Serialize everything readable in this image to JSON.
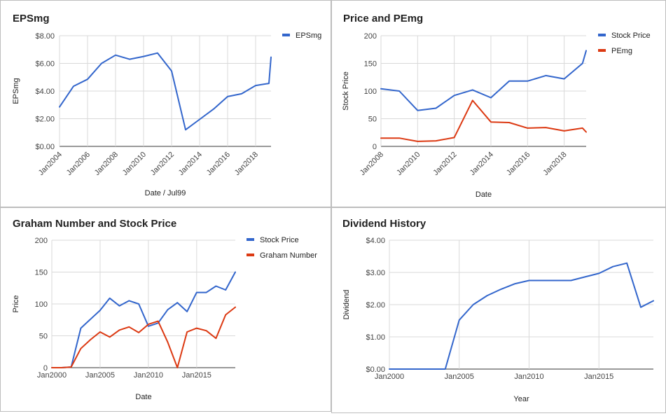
{
  "colors": {
    "blue": "#3366cc",
    "red": "#dc3912"
  },
  "chart_data": [
    {
      "type": "line",
      "title": "EPSmg",
      "xlabel": "Date / Jul99",
      "ylabel": "EPSmg",
      "ylim": [
        0,
        8
      ],
      "y_ticks": [
        "$0.00",
        "$2.00",
        "$4.00",
        "$6.00",
        "$8.00"
      ],
      "x_ticks": [
        "Jan2004",
        "Jan2006",
        "Jan2008",
        "Jan2010",
        "Jan2012",
        "Jan2014",
        "Jan2016",
        "Jan2018"
      ],
      "x_tick_values": [
        2004,
        2006,
        2008,
        2010,
        2012,
        2014,
        2016,
        2018
      ],
      "xlim": [
        2004,
        2019.1
      ],
      "legend": "right",
      "series": [
        {
          "name": "EPSmg",
          "color": "#3366cc",
          "x": [
            2004,
            2005,
            2006,
            2007,
            2008,
            2009,
            2010,
            2011,
            2012,
            2013,
            2014,
            2015,
            2016,
            2017,
            2018,
            2018.95,
            2019.1
          ],
          "y": [
            2.85,
            4.35,
            4.85,
            6.0,
            6.6,
            6.3,
            6.5,
            6.75,
            5.45,
            1.2,
            1.95,
            2.7,
            3.6,
            3.8,
            4.4,
            4.55,
            6.45
          ]
        }
      ]
    },
    {
      "type": "line",
      "title": "Price and PEmg",
      "xlabel": "Date",
      "ylabel": "Stock Price",
      "ylim": [
        0,
        200
      ],
      "y_ticks": [
        "0",
        "50",
        "100",
        "150",
        "200"
      ],
      "x_ticks": [
        "Jan2008",
        "Jan2010",
        "Jan2012",
        "Jan2014",
        "Jan2016",
        "Jan2018"
      ],
      "x_tick_values": [
        2008,
        2010,
        2012,
        2014,
        2016,
        2018
      ],
      "xlim": [
        2008,
        2019.2
      ],
      "legend": "right",
      "series": [
        {
          "name": "Stock Price",
          "color": "#3366cc",
          "x": [
            2008,
            2009,
            2010,
            2011,
            2012,
            2013,
            2014,
            2015,
            2016,
            2017,
            2018,
            2019,
            2019.2
          ],
          "y": [
            104,
            100,
            65,
            69,
            92,
            102,
            88,
            118,
            118,
            128,
            122,
            150,
            173
          ]
        },
        {
          "name": "PEmg",
          "color": "#dc3912",
          "x": [
            2008,
            2009,
            2010,
            2011,
            2012,
            2013,
            2014,
            2015,
            2016,
            2017,
            2018,
            2019,
            2019.2
          ],
          "y": [
            15,
            15,
            9,
            10,
            16,
            83,
            44,
            43,
            33,
            34,
            28,
            33,
            26
          ]
        }
      ]
    },
    {
      "type": "line",
      "title": "Graham Number and Stock Price",
      "xlabel": "Date",
      "ylabel": "Price",
      "ylim": [
        0,
        200
      ],
      "y_ticks": [
        "0",
        "50",
        "100",
        "150",
        "200"
      ],
      "x_ticks": [
        "Jan2000",
        "Jan2005",
        "Jan2010",
        "Jan2015"
      ],
      "x_tick_values": [
        2000,
        2005,
        2010,
        2015
      ],
      "xlim": [
        2000,
        2019.0
      ],
      "legend": "right",
      "series": [
        {
          "name": "Stock Price",
          "color": "#3366cc",
          "x": [
            2000,
            2001,
            2002,
            2003,
            2004,
            2005,
            2006,
            2007,
            2008,
            2009,
            2010,
            2011,
            2012,
            2013,
            2014,
            2015,
            2016,
            2017,
            2018,
            2019
          ],
          "y": [
            0,
            0,
            1,
            62,
            76,
            90,
            109,
            97,
            105,
            100,
            65,
            70,
            91,
            102,
            88,
            118,
            118,
            128,
            122,
            150
          ]
        },
        {
          "name": "Graham Number",
          "color": "#dc3912",
          "x": [
            2000,
            2001,
            2002,
            2003,
            2004,
            2005,
            2006,
            2007,
            2008,
            2009,
            2010,
            2011,
            2012,
            2013,
            2014,
            2015,
            2016,
            2017,
            2018,
            2019
          ],
          "y": [
            0,
            0,
            1,
            30,
            44,
            56,
            48,
            59,
            64,
            55,
            68,
            73,
            40,
            0,
            56,
            62,
            58,
            46,
            83,
            95
          ]
        }
      ]
    },
    {
      "type": "line",
      "title": "Dividend History",
      "xlabel": "Year",
      "ylabel": "Dividend",
      "ylim": [
        0,
        4
      ],
      "y_ticks": [
        "$0.00",
        "$1.00",
        "$2.00",
        "$3.00",
        "$4.00"
      ],
      "x_ticks": [
        "Jan2000",
        "Jan2005",
        "Jan2010",
        "Jan2015"
      ],
      "x_tick_values": [
        2000,
        2005,
        2010,
        2015
      ],
      "xlim": [
        2000,
        2018.9
      ],
      "legend": "none",
      "series": [
        {
          "name": "",
          "color": "#3366cc",
          "x": [
            2000,
            2001,
            2002,
            2003,
            2004,
            2005,
            2006,
            2007,
            2008,
            2009,
            2010,
            2011,
            2012,
            2013,
            2014,
            2015,
            2016,
            2017,
            2018,
            2018.9
          ],
          "y": [
            0,
            0,
            0,
            0,
            0,
            1.52,
            2.0,
            2.28,
            2.48,
            2.65,
            2.75,
            2.75,
            2.75,
            2.75,
            2.86,
            2.97,
            3.18,
            3.29,
            1.92,
            2.12
          ]
        }
      ]
    }
  ]
}
